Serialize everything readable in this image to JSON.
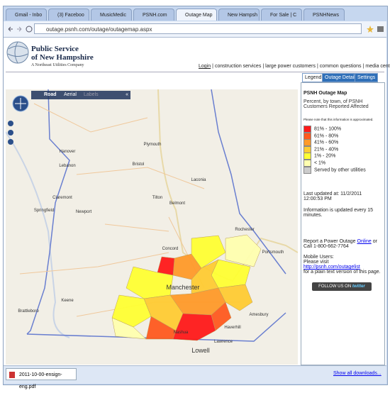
{
  "browser": {
    "tabs": [
      "Gmail - Inbo",
      "(3) Faceboo",
      "MusicMedic",
      "PSNH.com",
      "Outage Map",
      "New Hampsh",
      "For Sale | C",
      "PSNHNews"
    ],
    "active_tab": 4,
    "url": "outage.psnh.com/outage/outagemap.aspx"
  },
  "header": {
    "logo_line1": "Public Service",
    "logo_line2": "of New Hampshire",
    "logo_tagline": "A Northeast Utilities Company",
    "nav_links": [
      "Login",
      "construction services",
      "large power customers",
      "common questions",
      "media center"
    ],
    "nav_separator": "|"
  },
  "map": {
    "view_buttons": [
      "Road",
      "Aerial",
      "Labels"
    ],
    "collapse": "«",
    "towns": [
      "Hanover",
      "Lebanon",
      "Claremont",
      "Springfield",
      "Newport",
      "Plymouth",
      "Bristol",
      "Tilton",
      "Belmont",
      "Laconia",
      "Rochester",
      "Concord",
      "Portsmouth",
      "Manchester",
      "Keene",
      "Brattleboro",
      "Amesbury",
      "Haverhill",
      "Lawrence",
      "Nashua",
      "Lowell"
    ]
  },
  "panel": {
    "tabs": [
      "Legend",
      "Outage Details",
      "Settings"
    ],
    "title": "PSNH Outage Map",
    "subtitle": "Percent, by town, of PSNH Customers Reported Affected",
    "note": "Please note that this information is approximated.",
    "legend": [
      {
        "label": "81% - 100%",
        "color": "#ff1a1a"
      },
      {
        "label": "61% - 80%",
        "color": "#ff5a1f"
      },
      {
        "label": "41% - 60%",
        "color": "#ff9a2a"
      },
      {
        "label": "21% - 40%",
        "color": "#ffcc33"
      },
      {
        "label": "1% - 20%",
        "color": "#ffff33"
      },
      {
        "label": "< 1%",
        "color": "#ffffb0"
      },
      {
        "label": "Served by other utilities",
        "color": "#cccccc"
      }
    ],
    "updated": "Last updated at: 11/2/2011 12:00:53 PM",
    "update_freq": "Information is updated every 15 minutes.",
    "report_before": "Report a Power Outage",
    "report_link": "Online",
    "report_after": "or Call 1-800-662-7764",
    "mobile_title": "Mobile Users:",
    "mobile_visit": "Please visit",
    "mobile_link": "http://psnh.com/outagelist",
    "mobile_after": "for a plain text version of this page.",
    "twitter_prefix": "FOLLOW US ON",
    "twitter_brand": "twitter"
  },
  "downloads": {
    "file": "2011-10-00-ensign-eng.pdf",
    "show_all": "Show all downloads..."
  }
}
